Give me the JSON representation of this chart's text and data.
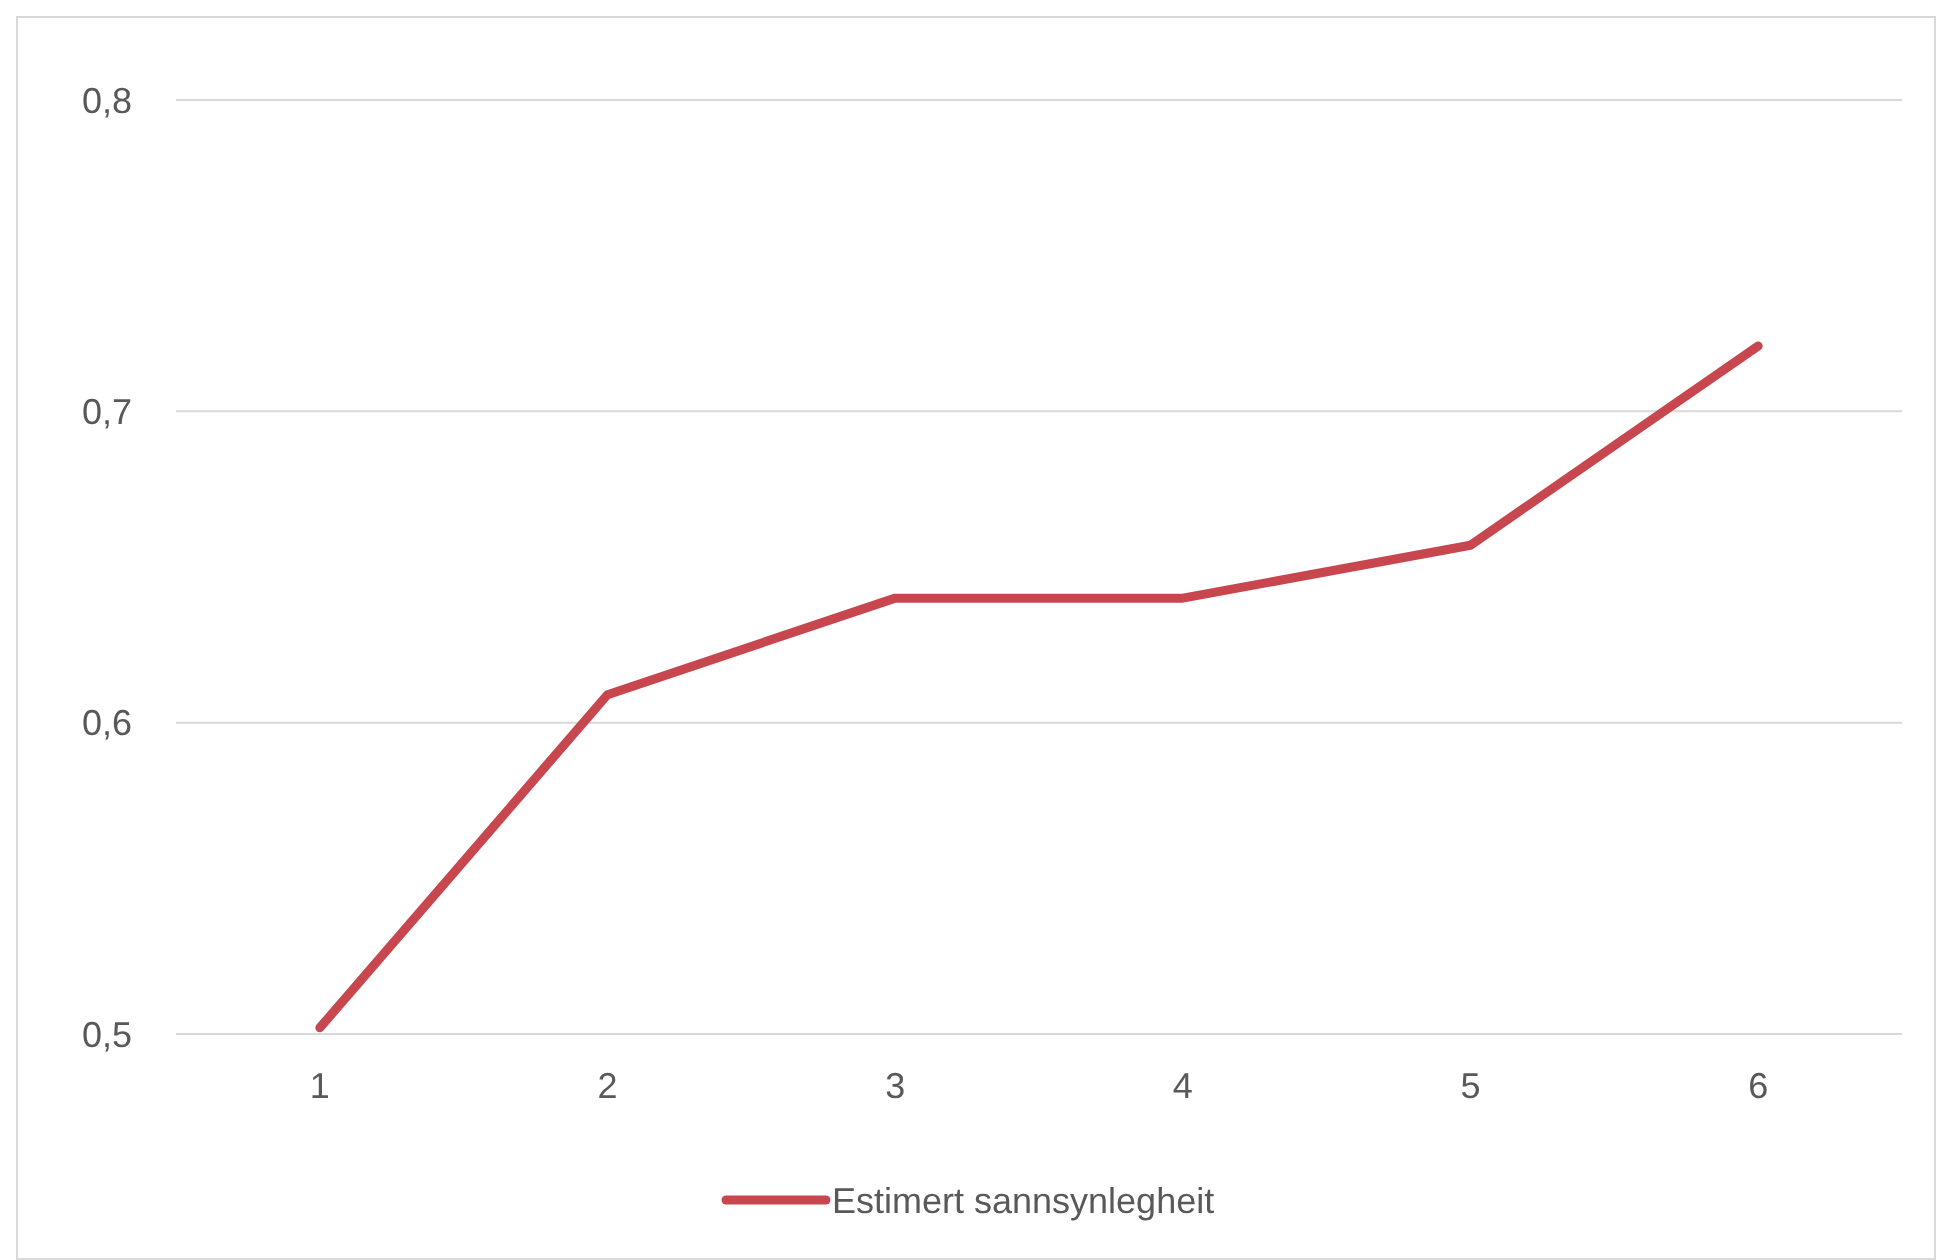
{
  "chart_data": {
    "type": "line",
    "categories": [
      "1",
      "2",
      "3",
      "4",
      "5",
      "6"
    ],
    "series": [
      {
        "name": "Estimert sannsynlegheit",
        "color": "#c8474f",
        "values": [
          0.502,
          0.609,
          0.64,
          0.64,
          0.657,
          0.721
        ]
      }
    ],
    "ylim": [
      0.5,
      0.8
    ],
    "yticks": [
      {
        "value": 0.5,
        "label": "0,5"
      },
      {
        "value": 0.6,
        "label": "0,6"
      },
      {
        "value": 0.7,
        "label": "0,7"
      },
      {
        "value": 0.8,
        "label": "0,8"
      }
    ],
    "grid": "y",
    "legend": "bottom",
    "marker": "none",
    "line_style": "solid"
  }
}
